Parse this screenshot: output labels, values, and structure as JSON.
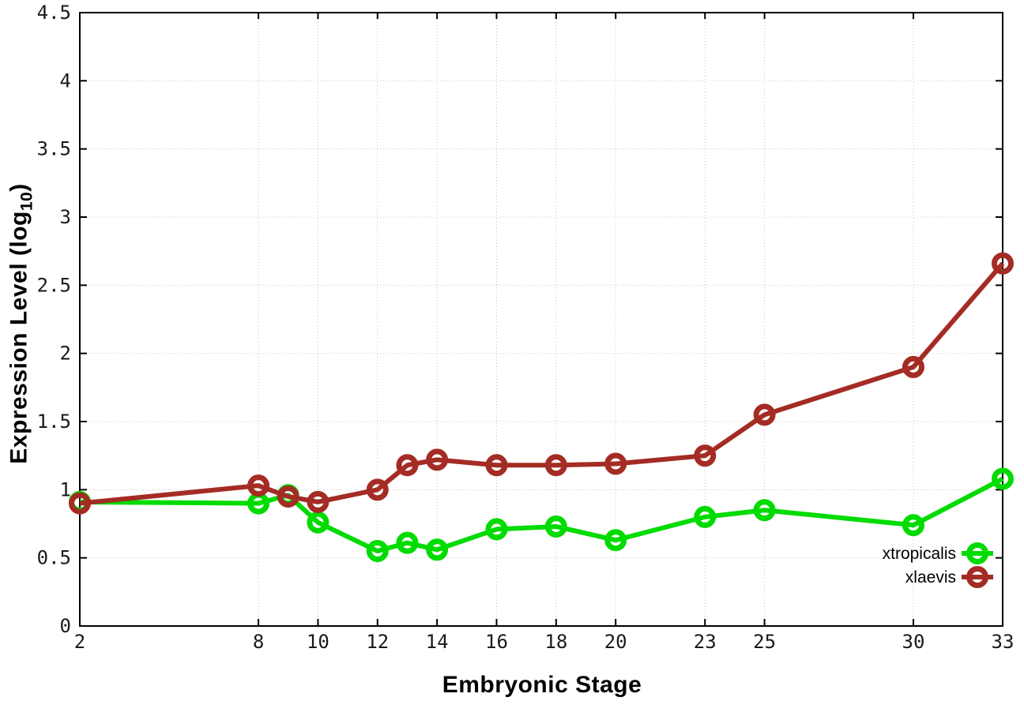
{
  "chart_data": {
    "type": "line",
    "title": "",
    "xlabel": "Embryonic Stage",
    "ylabel": "Expression Level (log10)",
    "ylabel_parts": {
      "prefix": "Expression Level (log",
      "sub": "10",
      "suffix": ")"
    },
    "xlim": [
      2,
      33
    ],
    "ylim": [
      0,
      4.5
    ],
    "x_ticks": [
      2,
      8,
      10,
      12,
      14,
      16,
      18,
      20,
      23,
      25,
      30,
      33
    ],
    "x_tick_labels": [
      "2",
      "8",
      "10",
      "12",
      "14",
      "16",
      "18",
      "20",
      "23",
      "25",
      "30",
      "33"
    ],
    "y_ticks": [
      0,
      0.5,
      1,
      1.5,
      2,
      2.5,
      3,
      3.5,
      4,
      4.5
    ],
    "y_tick_labels": [
      "0",
      "0.5",
      "1",
      "1.5",
      "2",
      "2.5",
      "3",
      "3.5",
      "4",
      "4.5"
    ],
    "grid": true,
    "grid_color": "#c4c4c4",
    "axis_color": "#000000",
    "legend_position": "inside-bottom-right",
    "x": [
      2,
      8,
      9,
      10,
      12,
      13,
      14,
      16,
      18,
      20,
      23,
      25,
      30,
      33
    ],
    "series": [
      {
        "name": "xtropicalis",
        "color": "#00db00",
        "values": [
          0.91,
          0.9,
          0.96,
          0.76,
          0.55,
          0.61,
          0.56,
          0.71,
          0.73,
          0.63,
          0.8,
          0.85,
          0.74,
          1.08
        ]
      },
      {
        "name": "xlaevis",
        "color": "#a42c24",
        "values": [
          0.9,
          1.03,
          0.95,
          0.91,
          1.0,
          1.18,
          1.22,
          1.18,
          1.18,
          1.19,
          1.25,
          1.55,
          1.9,
          2.66
        ]
      }
    ]
  }
}
